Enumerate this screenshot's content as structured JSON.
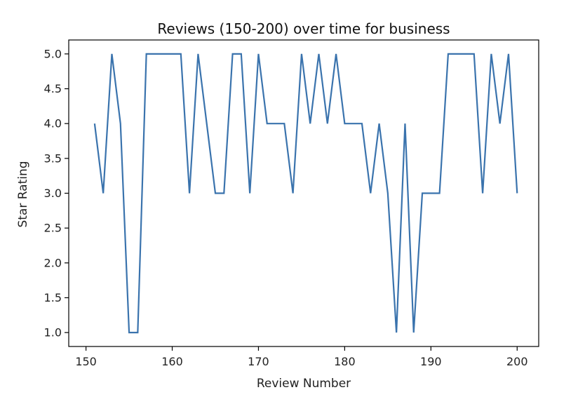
{
  "chart_data": {
    "type": "line",
    "title": "Reviews (150-200) over time for business",
    "xlabel": "Review Number",
    "ylabel": "Star Rating",
    "xlim": [
      148,
      202.5
    ],
    "ylim": [
      0.8,
      5.2
    ],
    "x_ticks": [
      150,
      160,
      170,
      180,
      190,
      200
    ],
    "y_ticks": [
      1.0,
      1.5,
      2.0,
      2.5,
      3.0,
      3.5,
      4.0,
      4.5,
      5.0
    ],
    "x_tick_labels": [
      "150",
      "160",
      "170",
      "180",
      "190",
      "200"
    ],
    "y_tick_labels": [
      "1.0",
      "1.5",
      "2.0",
      "2.5",
      "3.0",
      "3.5",
      "4.0",
      "4.5",
      "5.0"
    ],
    "grid": false,
    "line_color": "#3a73ad",
    "series": [
      {
        "x": [
          151,
          152,
          153,
          154,
          155,
          156,
          157,
          158,
          159,
          160,
          161,
          162,
          163,
          164,
          165,
          166,
          167,
          168,
          169,
          170,
          171,
          172,
          173,
          174,
          175,
          176,
          177,
          178,
          179,
          180,
          181,
          182,
          183,
          184,
          185,
          186,
          187,
          188,
          189,
          190,
          191,
          192,
          193,
          194,
          195,
          196,
          197,
          198,
          199,
          200
        ],
        "values": [
          4,
          3,
          5,
          4,
          1,
          1,
          5,
          5,
          5,
          5,
          5,
          3,
          5,
          4,
          3,
          3,
          5,
          5,
          3,
          5,
          4,
          4,
          4,
          3,
          5,
          4,
          5,
          4,
          5,
          4,
          4,
          4,
          3,
          4,
          3,
          1,
          4,
          1,
          3,
          3,
          3,
          5,
          5,
          5,
          5,
          3,
          5,
          4,
          5,
          3
        ]
      }
    ]
  }
}
